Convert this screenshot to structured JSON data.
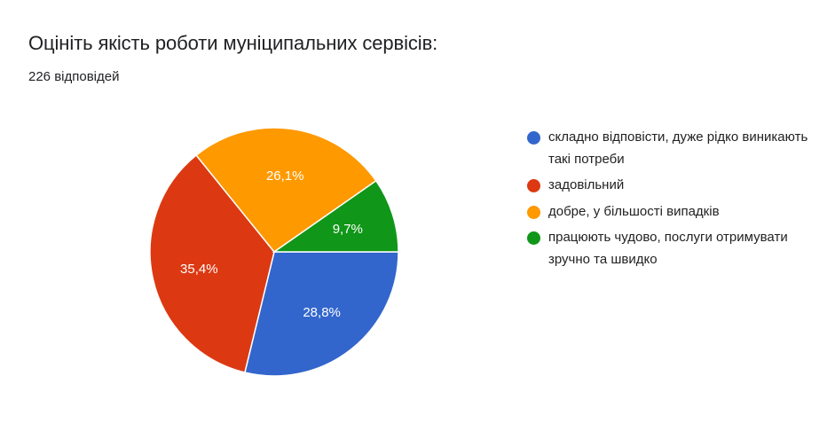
{
  "question": {
    "title": "Оцініть якість роботи муніципальних сервісів:",
    "responses": "226 відповідей"
  },
  "chart_data": {
    "type": "pie",
    "title": "Оцініть якість роботи муніципальних сервісів:",
    "start_angle_deg": 90,
    "direction": "clockwise",
    "slices": [
      {
        "label": "складно відповісти, дуже рідко виникають такі потреби",
        "value": 28.8,
        "display": "28,8%",
        "color": "#3366cc",
        "key": "dont_know"
      },
      {
        "label": "задовільний",
        "value": 35.4,
        "display": "35,4%",
        "color": "#dc3912",
        "key": "satisfactory"
      },
      {
        "label": "добре, у більшості випадків",
        "value": 26.1,
        "display": "26,1%",
        "color": "#ff9900",
        "key": "good"
      },
      {
        "label": "працюють чудово, послуги отримувати зручно та швидко",
        "value": 9.7,
        "display": "9,7%",
        "color": "#109618",
        "key": "excellent"
      }
    ],
    "legend_position": "right"
  }
}
